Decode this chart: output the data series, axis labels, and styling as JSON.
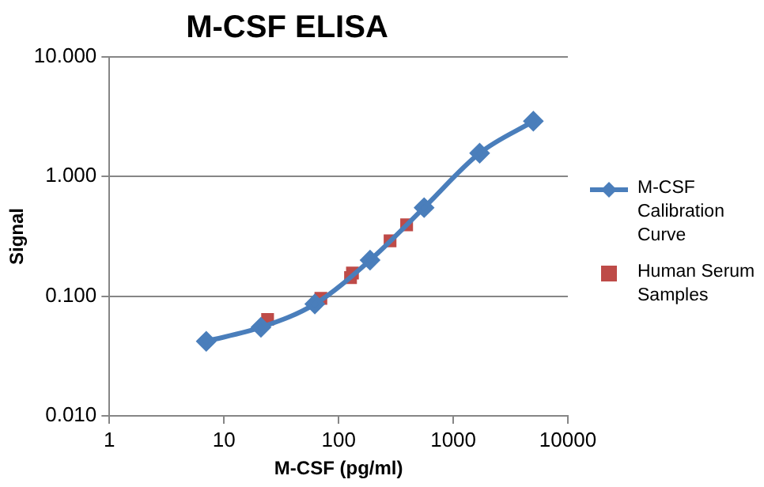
{
  "chart_data": {
    "type": "line",
    "title": "M-CSF ELISA",
    "xlabel": "M-CSF (pg/ml)",
    "ylabel": "Signal",
    "log": "xy",
    "grid": "y",
    "legend": "right",
    "xlim": [
      1,
      10000
    ],
    "xticks": [
      1,
      10,
      100,
      1000,
      10000
    ],
    "ylim": [
      0.01,
      10
    ],
    "yticks": [
      {
        "value": 0.01,
        "label": "0.010"
      },
      {
        "value": 0.1,
        "label": "0.100"
      },
      {
        "value": 1,
        "label": "1.000"
      },
      {
        "value": 10,
        "label": "10.000"
      }
    ],
    "series": [
      {
        "name": "M-CSF Calibration Curve",
        "color": "#4a7ebb",
        "marker": "diamond",
        "line_style": "solid",
        "x": [
          7,
          21,
          62,
          188,
          557,
          1700,
          5000
        ],
        "values": [
          0.042,
          0.055,
          0.086,
          0.2,
          0.55,
          1.57,
          2.9
        ]
      },
      {
        "name": "Human Serum Samples",
        "type": "scatter",
        "color": "#be4b48",
        "marker": "square",
        "x": [
          24,
          70,
          127,
          132,
          281,
          392
        ],
        "values": [
          0.064,
          0.096,
          0.143,
          0.156,
          0.29,
          0.395
        ]
      }
    ]
  }
}
